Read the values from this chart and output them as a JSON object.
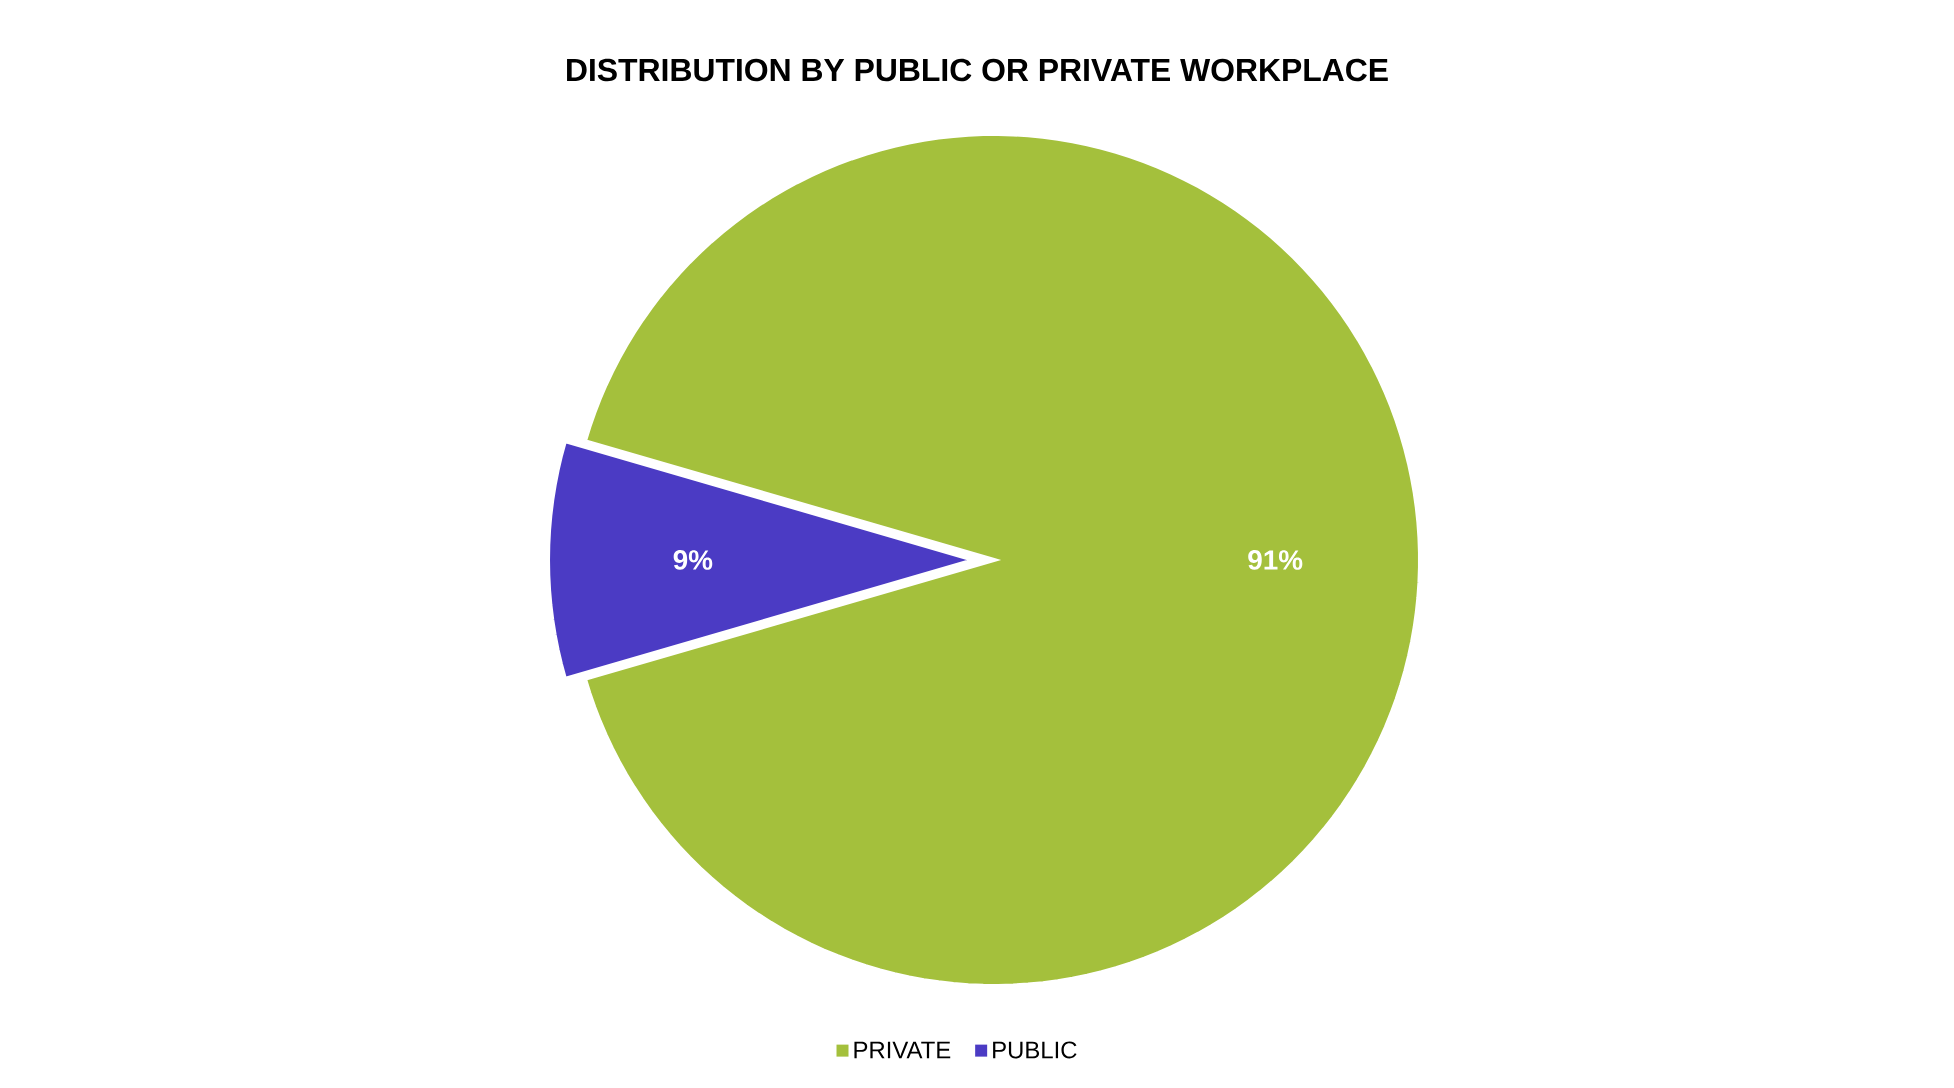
{
  "chart_data": {
    "type": "pie",
    "title": "DISTRIBUTION BY PUBLIC OR PRIVATE WORKPLACE",
    "categories": [
      "PRIVATE",
      "PUBLIC"
    ],
    "values": [
      91,
      9
    ],
    "colors": [
      "#a4c03c",
      "#4b3bc4"
    ],
    "value_labels": [
      "91%",
      "9%"
    ],
    "legend": "bottom"
  }
}
